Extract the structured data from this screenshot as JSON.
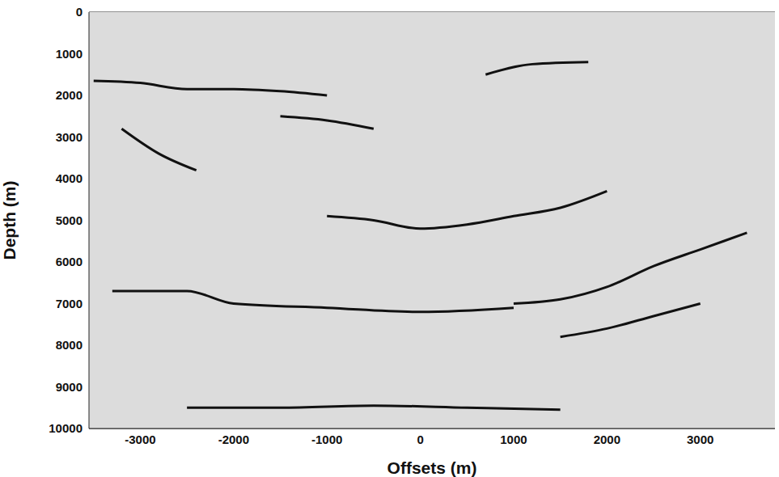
{
  "chart_data": {
    "type": "line",
    "xlabel": "Offsets (m)",
    "ylabel": "Depth (m)",
    "xlim": [
      -3550,
      3800
    ],
    "xticks": [
      -3000,
      -2000,
      -1000,
      0,
      1000,
      2000,
      3000
    ],
    "ylim": [
      0,
      10000
    ],
    "yticks": [
      0,
      1000,
      2000,
      3000,
      4000,
      5000,
      6000,
      7000,
      8000,
      9000,
      10000
    ],
    "log_depth_down": true,
    "grid": true,
    "color": "#111111",
    "line_style": "solid",
    "marker": "none",
    "series": [
      {
        "x": [
          -3500,
          -3000,
          -2500,
          -2000,
          -1500,
          -1000
        ],
        "values": [
          1650,
          1700,
          1850,
          1850,
          1900,
          2000
        ]
      },
      {
        "x": [
          700,
          1200,
          1800
        ],
        "values": [
          1500,
          1250,
          1200
        ]
      },
      {
        "x": [
          -1000,
          -500,
          0,
          500,
          1000,
          1500,
          2000
        ],
        "values": [
          4900,
          5000,
          5200,
          5100,
          4900,
          4700,
          4300
        ]
      },
      {
        "x": [
          1000,
          1500,
          2000,
          2500,
          3000,
          3500
        ],
        "values": [
          7000,
          6900,
          6600,
          6100,
          5700,
          5300
        ]
      },
      {
        "x": [
          1500,
          2000,
          2500,
          3000
        ],
        "values": [
          7800,
          7600,
          7300,
          7000
        ]
      },
      {
        "x": [
          -3300,
          -2500,
          -2000,
          -1000,
          0,
          1000
        ],
        "values": [
          6700,
          6700,
          7000,
          7100,
          7200,
          7100
        ]
      },
      {
        "x": [
          -2500,
          -1500,
          -500,
          500,
          1500
        ],
        "values": [
          9500,
          9500,
          9450,
          9500,
          9550
        ]
      },
      {
        "x": [
          -3200,
          -2800,
          -2400
        ],
        "values": [
          2800,
          3400,
          3800
        ]
      },
      {
        "x": [
          -1500,
          -1000,
          -500
        ],
        "values": [
          2500,
          2600,
          2800
        ]
      }
    ]
  }
}
